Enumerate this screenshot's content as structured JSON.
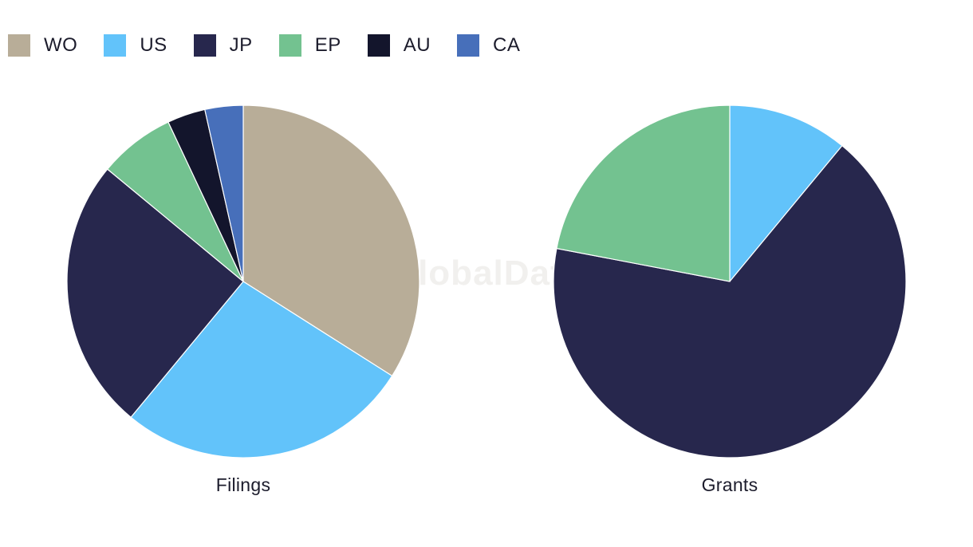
{
  "watermark": "GlobalData",
  "legend": [
    {
      "label": "WO",
      "color": "#b8ad98"
    },
    {
      "label": "US",
      "color": "#62c3fa"
    },
    {
      "label": "JP",
      "color": "#27274d"
    },
    {
      "label": "EP",
      "color": "#73c290"
    },
    {
      "label": "AU",
      "color": "#13152c"
    },
    {
      "label": "CA",
      "color": "#476fba"
    }
  ],
  "chart_data": [
    {
      "type": "pie",
      "title": "Filings",
      "categories": [
        "WO",
        "US",
        "JP",
        "EP",
        "AU",
        "CA"
      ],
      "values": [
        34,
        27,
        25,
        7,
        3.5,
        3.5
      ]
    },
    {
      "type": "pie",
      "title": "Grants",
      "categories": [
        "US",
        "JP",
        "EP"
      ],
      "values": [
        11,
        67,
        22
      ]
    }
  ]
}
